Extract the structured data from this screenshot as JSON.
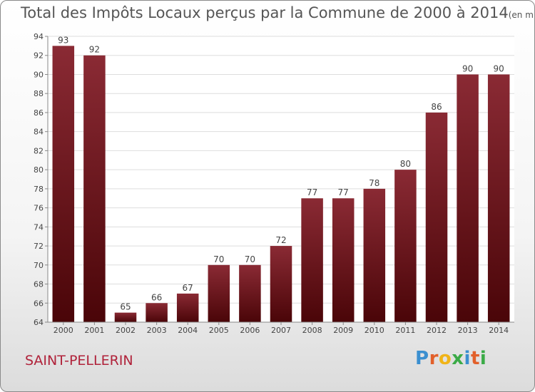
{
  "chart_data": {
    "type": "bar",
    "title": "Total des Impôts Locaux perçus par la Commune de 2000 à 2014",
    "subtitle": "(en milliers d'€)",
    "categories": [
      "2000",
      "2001",
      "2002",
      "2003",
      "2004",
      "2005",
      "2006",
      "2007",
      "2008",
      "2009",
      "2010",
      "2011",
      "2012",
      "2013",
      "2014"
    ],
    "values": [
      93,
      92,
      65,
      66,
      67,
      70,
      70,
      72,
      77,
      77,
      78,
      80,
      86,
      90,
      90
    ],
    "ylim": [
      64,
      94
    ],
    "yticks": [
      64,
      66,
      68,
      70,
      72,
      74,
      76,
      78,
      80,
      82,
      84,
      86,
      88,
      90,
      92,
      94
    ],
    "xlabel": "",
    "ylabel": "",
    "grid": true,
    "colors": {
      "bar_top": "#8a2a34",
      "bar_bottom": "#4a0508",
      "axis": "#888888"
    }
  },
  "footer": {
    "commune": "SAINT-PELLERIN",
    "logo_letters": [
      "P",
      "r",
      "o",
      "x",
      "i",
      "t",
      "i"
    ],
    "logo_colors": [
      "#3a8fd0",
      "#e2602a",
      "#f0b418",
      "#3bab47",
      "#3a8fd0",
      "#e2602a",
      "#3bab47"
    ]
  }
}
